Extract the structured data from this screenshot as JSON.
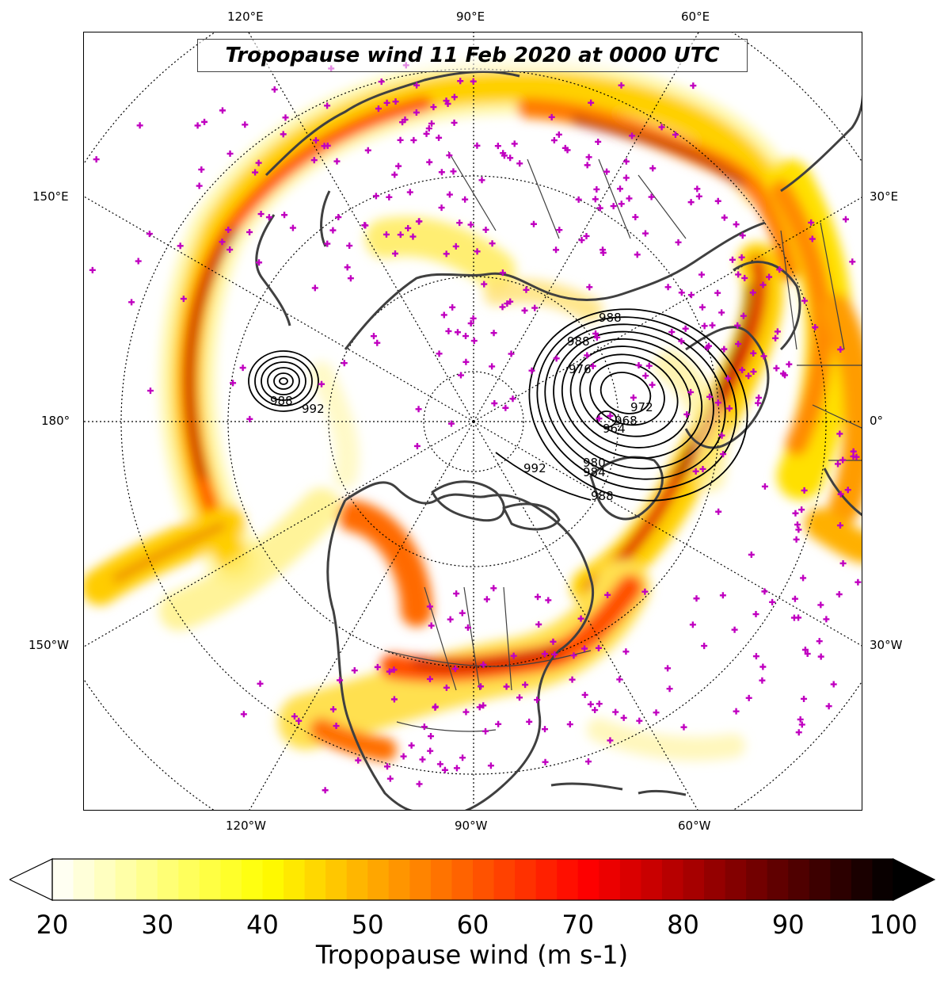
{
  "title": "Tropopause wind 11 Feb 2020 at 0000 UTC",
  "longitude_labels": {
    "top": [
      "120°E",
      "90°E",
      "60°E"
    ],
    "bottom": [
      "120°W",
      "90°W",
      "60°W"
    ],
    "left": [
      "150°E",
      "180°",
      "150°W"
    ],
    "right": [
      "30°E",
      "0°",
      "30°W"
    ]
  },
  "pressure_contour_labels": [
    "988",
    "992",
    "988",
    "988",
    "964",
    "968",
    "972",
    "976",
    "980",
    "984",
    "988",
    "992"
  ],
  "colorbar": {
    "label": "Tropopause wind (m s-1)",
    "ticks": [
      "20",
      "30",
      "40",
      "50",
      "60",
      "70",
      "80",
      "90",
      "100"
    ],
    "range": [
      20,
      100
    ],
    "extend": "both",
    "colormap": "hot_r"
  },
  "colors": {
    "station_marker": "#c000c0",
    "coastline": "#404040",
    "contour": "#000000"
  }
}
